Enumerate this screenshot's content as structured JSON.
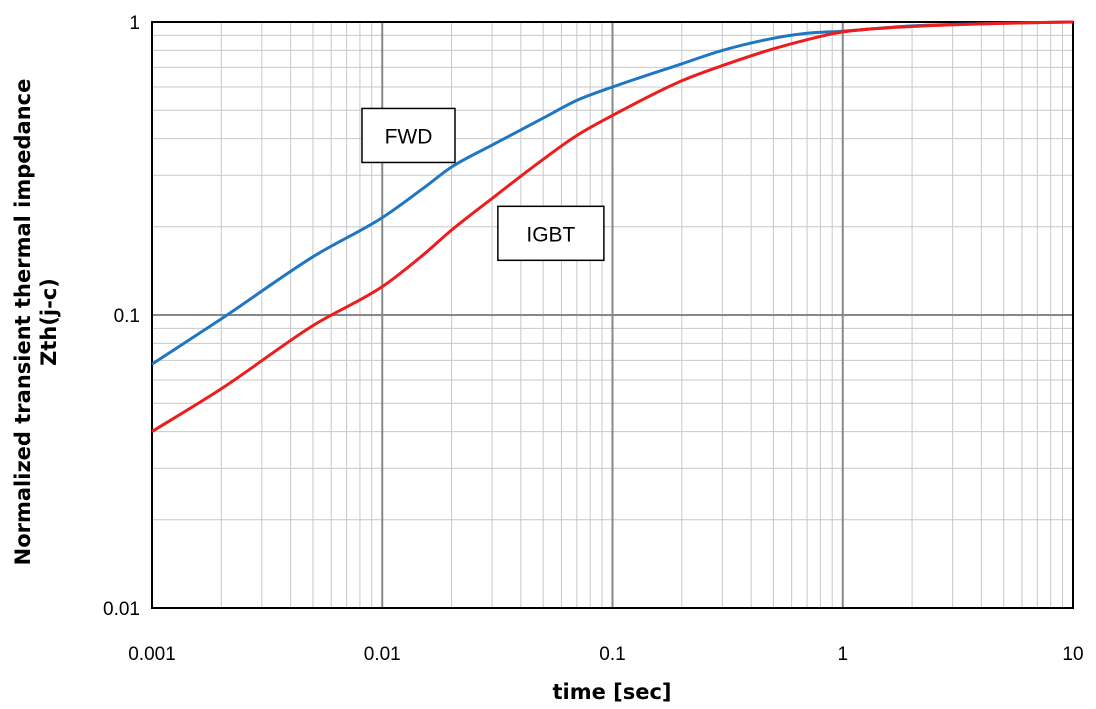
{
  "chart_data": {
    "type": "line",
    "title": "",
    "xlabel": "time [sec]",
    "ylabel_line1": "Normalized transient thermal impedance",
    "ylabel_line2": "Zth(j-c)",
    "xscale": "log",
    "yscale": "log",
    "xlim": [
      0.001,
      10
    ],
    "ylim": [
      0.01,
      1
    ],
    "grid": true,
    "x_ticks": [
      {
        "value": 0.001,
        "label": "0.001"
      },
      {
        "value": 0.01,
        "label": "0.01"
      },
      {
        "value": 0.1,
        "label": "0.1"
      },
      {
        "value": 1,
        "label": "1"
      },
      {
        "value": 10,
        "label": "10"
      }
    ],
    "y_ticks": [
      {
        "value": 0.01,
        "label": "0.01"
      },
      {
        "value": 0.1,
        "label": "0.1"
      },
      {
        "value": 1,
        "label": "1"
      }
    ],
    "series": [
      {
        "name": "FWD",
        "color": "#1f77c4",
        "points": [
          [
            0.001,
            0.068
          ],
          [
            0.002,
            0.097
          ],
          [
            0.005,
            0.158
          ],
          [
            0.01,
            0.215
          ],
          [
            0.015,
            0.27
          ],
          [
            0.02,
            0.32
          ],
          [
            0.03,
            0.38
          ],
          [
            0.05,
            0.47
          ],
          [
            0.07,
            0.54
          ],
          [
            0.1,
            0.6
          ],
          [
            0.2,
            0.72
          ],
          [
            0.3,
            0.8
          ],
          [
            0.5,
            0.88
          ],
          [
            0.7,
            0.915
          ],
          [
            1,
            0.93
          ],
          [
            2,
            0.97
          ],
          [
            5,
            0.99
          ],
          [
            10,
            1.0
          ]
        ]
      },
      {
        "name": "IGBT",
        "color": "#ee1c1c",
        "points": [
          [
            0.001,
            0.04
          ],
          [
            0.002,
            0.056
          ],
          [
            0.005,
            0.092
          ],
          [
            0.01,
            0.125
          ],
          [
            0.015,
            0.16
          ],
          [
            0.02,
            0.195
          ],
          [
            0.03,
            0.25
          ],
          [
            0.05,
            0.34
          ],
          [
            0.07,
            0.41
          ],
          [
            0.1,
            0.48
          ],
          [
            0.2,
            0.63
          ],
          [
            0.3,
            0.71
          ],
          [
            0.5,
            0.81
          ],
          [
            0.7,
            0.87
          ],
          [
            1,
            0.925
          ],
          [
            2,
            0.965
          ],
          [
            5,
            0.99
          ],
          [
            10,
            1.0
          ]
        ]
      }
    ],
    "annotations": [
      {
        "text": "FWD",
        "x": 0.013,
        "y": 0.41
      },
      {
        "text": "IGBT",
        "x": 0.054,
        "y": 0.19
      }
    ]
  }
}
